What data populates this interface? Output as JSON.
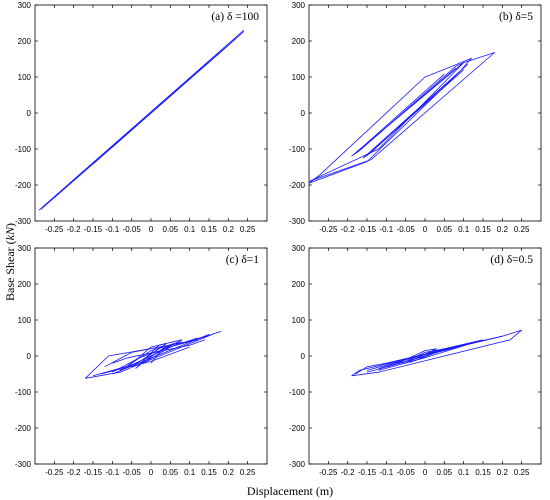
{
  "figure": {
    "xlabel": "Displacement (m)",
    "ylabel_prefix": "Base Shear (",
    "ylabel_unit": "kN",
    "ylabel_suffix": ")",
    "line_color": "#1a1aff"
  },
  "chart_data": [
    {
      "type": "line",
      "title": "(a) δ =100",
      "xlim": [
        -0.3,
        0.3
      ],
      "ylim": [
        -300,
        300
      ],
      "xticks": [
        -0.25,
        -0.2,
        -0.15,
        -0.1,
        -0.05,
        0,
        0.05,
        0.1,
        0.15,
        0.2,
        0.25
      ],
      "yticks": [
        -300,
        -200,
        -100,
        0,
        100,
        200,
        300
      ],
      "xtick_labels": [
        "-0.25",
        "-0.2",
        "-0.15",
        "-0.1",
        "-0.05",
        "0",
        "0.05",
        "0.1",
        "0.15",
        "0.2",
        "0.25"
      ],
      "ytick_labels": [
        "-300",
        "-200",
        "-100",
        "0",
        "100",
        "200",
        "300"
      ],
      "series": [
        {
          "x": [
            -0.29,
            0.24
          ],
          "y": [
            -270,
            230
          ]
        },
        {
          "x": [
            -0.285,
            0.24
          ],
          "y": [
            -268,
            226
          ]
        },
        {
          "x": [
            -0.25,
            0.22
          ],
          "y": [
            -235,
            207
          ]
        },
        {
          "x": [
            -0.2,
            0.2
          ],
          "y": [
            -188,
            188
          ]
        },
        {
          "x": [
            -0.15,
            0.18
          ],
          "y": [
            -142,
            170
          ]
        },
        {
          "x": [
            -0.1,
            0.15
          ],
          "y": [
            -95,
            142
          ]
        }
      ]
    },
    {
      "type": "line",
      "title": "(b) δ=5",
      "xlim": [
        -0.3,
        0.3
      ],
      "ylim": [
        -300,
        300
      ],
      "xticks": [
        -0.25,
        -0.2,
        -0.15,
        -0.1,
        -0.05,
        0,
        0.05,
        0.1,
        0.15,
        0.2,
        0.25
      ],
      "yticks": [
        -300,
        -200,
        -100,
        0,
        100,
        200,
        300
      ],
      "xtick_labels": [
        "-0.25",
        "-0.2",
        "-0.15",
        "-0.1",
        "-0.05",
        "0",
        "0.05",
        "0.1",
        "0.15",
        "0.2",
        "0.25"
      ],
      "ytick_labels": [
        "-300",
        "-200",
        "-100",
        "0",
        "100",
        "200",
        "300"
      ],
      "series": [
        {
          "x": [
            -0.3,
            -0.27,
            0.0,
            0.07,
            0.12,
            0.11,
            0.09,
            -0.15,
            -0.3
          ],
          "y": [
            -195,
            -170,
            100,
            130,
            152,
            140,
            115,
            -135,
            -195
          ]
        },
        {
          "x": [
            -0.3,
            -0.14,
            0.18,
            0.1,
            -0.12,
            -0.3
          ],
          "y": [
            -190,
            -130,
            168,
            140,
            -100,
            -190
          ]
        },
        {
          "x": [
            -0.19,
            -0.17,
            0.08,
            0.1,
            -0.19
          ],
          "y": [
            -120,
            -105,
            130,
            140,
            -120
          ]
        },
        {
          "x": [
            -0.16,
            -0.14,
            0.1,
            0.11,
            -0.16
          ],
          "y": [
            -125,
            -110,
            125,
            135,
            -125
          ]
        },
        {
          "x": [
            -0.18,
            0.05
          ],
          "y": [
            -112,
            108
          ]
        },
        {
          "x": [
            -0.15,
            0.1
          ],
          "y": [
            -118,
            120
          ]
        },
        {
          "x": [
            -0.17,
            0.08
          ],
          "y": [
            -104,
            125
          ]
        }
      ]
    },
    {
      "type": "line",
      "title": "(c) δ=1",
      "xlim": [
        -0.3,
        0.3
      ],
      "ylim": [
        -300,
        300
      ],
      "xticks": [
        -0.25,
        -0.2,
        -0.15,
        -0.1,
        -0.05,
        0,
        0.05,
        0.1,
        0.15,
        0.2,
        0.25
      ],
      "yticks": [
        -300,
        -200,
        -100,
        0,
        100,
        200,
        300
      ],
      "xtick_labels": [
        "-0.25",
        "-0.2",
        "-0.15",
        "-0.1",
        "-0.05",
        "0",
        "0.05",
        "0.1",
        "0.15",
        "0.2",
        "0.25"
      ],
      "ytick_labels": [
        "-300",
        "-200",
        "-100",
        "0",
        "100",
        "200",
        "300"
      ],
      "series": [
        {
          "x": [
            -0.17,
            -0.11,
            0.1,
            0.18,
            0.17,
            -0.08,
            -0.17
          ],
          "y": [
            -62,
            0,
            40,
            68,
            65,
            -45,
            -62
          ]
        },
        {
          "x": [
            -0.1,
            0.15
          ],
          "y": [
            -50,
            60
          ]
        },
        {
          "x": [
            -0.12,
            -0.05,
            0.12
          ],
          "y": [
            -30,
            10,
            45
          ]
        },
        {
          "x": [
            -0.08,
            0.0,
            0.08
          ],
          "y": [
            -40,
            15,
            40
          ]
        },
        {
          "x": [
            -0.05,
            0.02,
            0.06
          ],
          "y": [
            -30,
            20,
            35
          ]
        },
        {
          "x": [
            -0.03,
            0.03,
            0.05
          ],
          "y": [
            -25,
            20,
            30
          ]
        },
        {
          "x": [
            -0.02,
            0.05,
            0.12
          ],
          "y": [
            -20,
            25,
            50
          ]
        },
        {
          "x": [
            0.0,
            0.03,
            0.1
          ],
          "y": [
            -20,
            20,
            40
          ]
        },
        {
          "x": [
            -0.1,
            -0.03,
            0.05,
            0.14
          ],
          "y": [
            -45,
            -5,
            25,
            55
          ]
        },
        {
          "x": [
            -0.15,
            -0.05,
            0.02
          ],
          "y": [
            -55,
            -25,
            10
          ]
        },
        {
          "x": [
            -0.06,
            0.0,
            0.04,
            -0.02,
            -0.06
          ],
          "y": [
            -30,
            25,
            35,
            -10,
            -30
          ]
        },
        {
          "x": [
            -0.04,
            0.02,
            0.08,
            0.0,
            -0.04
          ],
          "y": [
            -35,
            30,
            45,
            0,
            -35
          ]
        },
        {
          "x": [
            -0.1,
            -0.06,
            0.1,
            0.14
          ],
          "y": [
            -20,
            -5,
            30,
            45
          ]
        },
        {
          "x": [
            -0.13,
            0.0,
            0.1
          ],
          "y": [
            -50,
            -15,
            25
          ]
        }
      ]
    },
    {
      "type": "line",
      "title": "(d) δ=0.5",
      "xlim": [
        -0.3,
        0.3
      ],
      "ylim": [
        -300,
        300
      ],
      "xticks": [
        -0.25,
        -0.2,
        -0.15,
        -0.1,
        -0.05,
        0,
        0.05,
        0.1,
        0.15,
        0.2,
        0.25
      ],
      "yticks": [
        -300,
        -200,
        -100,
        0,
        100,
        200,
        300
      ],
      "xtick_labels": [
        "-0.25",
        "-0.2",
        "-0.15",
        "-0.1",
        "-0.05",
        "0",
        "0.05",
        "0.1",
        "0.15",
        "0.2",
        "0.25"
      ],
      "ytick_labels": [
        "-300",
        "-200",
        "-100",
        "0",
        "100",
        "200",
        "300"
      ],
      "series": [
        {
          "x": [
            -0.19,
            -0.17,
            0.2,
            0.25,
            0.22,
            -0.12,
            -0.19
          ],
          "y": [
            -55,
            -40,
            55,
            72,
            45,
            -45,
            -55
          ]
        },
        {
          "x": [
            -0.18,
            -0.15,
            -0.1,
            0.0,
            0.1,
            0.2
          ],
          "y": [
            -50,
            -30,
            -20,
            5,
            30,
            55
          ]
        },
        {
          "x": [
            -0.15,
            -0.05,
            0.05,
            0.15
          ],
          "y": [
            -40,
            -10,
            20,
            45
          ]
        },
        {
          "x": [
            -0.12,
            -0.02,
            0.05,
            0.12
          ],
          "y": [
            -35,
            0,
            15,
            35
          ]
        },
        {
          "x": [
            -0.1,
            -0.05,
            0.0,
            0.05,
            0.1
          ],
          "y": [
            -30,
            -15,
            10,
            20,
            30
          ]
        },
        {
          "x": [
            -0.08,
            0.0,
            0.03,
            -0.05
          ],
          "y": [
            -25,
            15,
            20,
            -20
          ]
        },
        {
          "x": [
            -0.06,
            0.02,
            0.04,
            -0.03
          ],
          "y": [
            -20,
            12,
            18,
            -15
          ]
        },
        {
          "x": [
            -0.04,
            0.03,
            0.06
          ],
          "y": [
            -18,
            10,
            20
          ]
        },
        {
          "x": [
            -0.15,
            -0.08,
            0.08,
            0.16
          ],
          "y": [
            -45,
            -25,
            25,
            45
          ]
        },
        {
          "x": [
            -0.12,
            0.0,
            0.12
          ],
          "y": [
            -40,
            -5,
            35
          ]
        }
      ]
    }
  ]
}
